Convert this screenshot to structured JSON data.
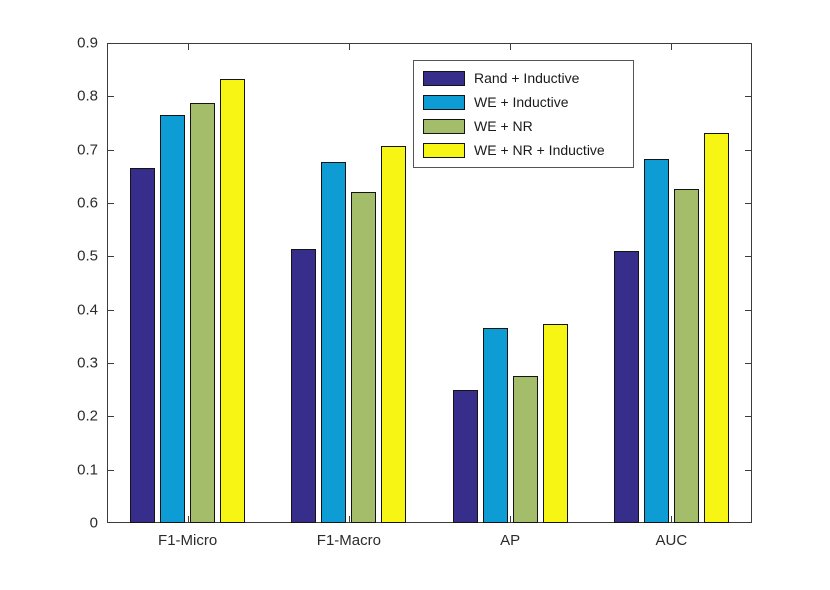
{
  "figure": {
    "background": "#ffffff"
  },
  "chart_data": {
    "type": "bar",
    "title": "",
    "xlabel": "",
    "ylabel": "",
    "grid": false,
    "categories": [
      "F1-Micro",
      "F1-Macro",
      "AP",
      "AUC"
    ],
    "series": [
      {
        "name": "Rand + Inductive",
        "color": "#372E8C",
        "values": [
          0.665,
          0.513,
          0.25,
          0.51
        ]
      },
      {
        "name": "WE + Inductive",
        "color": "#0D9DD4",
        "values": [
          0.765,
          0.676,
          0.366,
          0.683
        ]
      },
      {
        "name": "WE + NR",
        "color": "#A3BD6B",
        "values": [
          0.787,
          0.62,
          0.275,
          0.627
        ]
      },
      {
        "name": "WE + NR + Inductive",
        "color": "#F6F513",
        "values": [
          0.833,
          0.707,
          0.373,
          0.732
        ]
      }
    ],
    "ylim": [
      0,
      0.9
    ],
    "yticks": [
      0,
      0.1,
      0.2,
      0.3,
      0.4,
      0.5,
      0.6,
      0.7,
      0.8,
      0.9
    ],
    "ytick_labels": [
      "0",
      "0.1",
      "0.2",
      "0.3",
      "0.4",
      "0.5",
      "0.6",
      "0.7",
      "0.8",
      "0.9"
    ],
    "legend_position": "upper-center",
    "bar_edge_color": "#141414",
    "axis_color": "#3c3c3c",
    "text_color": "#2b2b2b"
  }
}
